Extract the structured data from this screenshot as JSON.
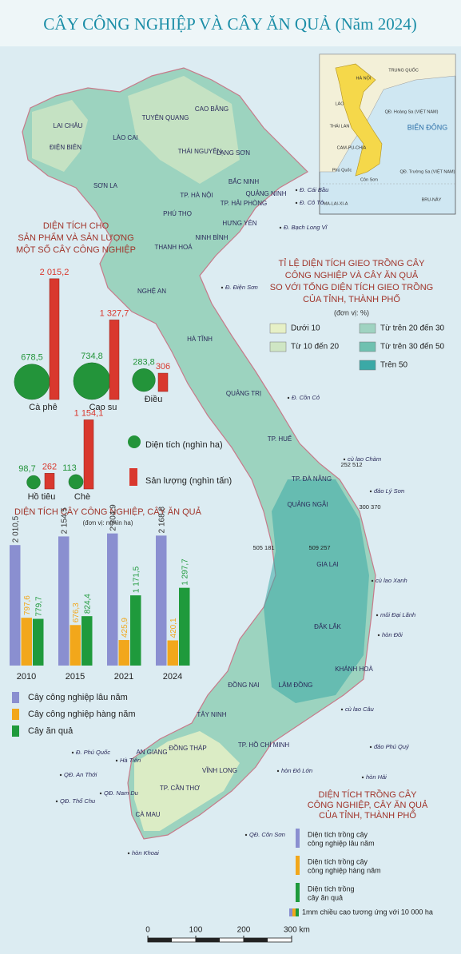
{
  "title": "CÂY CÔNG NGHIỆP VÀ CÂY ĂN QUẢ (Năm 2024)",
  "map": {
    "provinces": [
      "LAI CHÂU",
      "ĐIỆN BIÊN",
      "LÀO CAI",
      "TUYÊN QUANG",
      "CAO BẰNG",
      "THÁI NGUYÊN",
      "LẠNG SƠN",
      "SƠN LA",
      "BẮC NINH",
      "QUẢNG NINH",
      "TP. HÀ NỘI",
      "TP. HẢI PHÒNG",
      "PHÚ THỌ",
      "HƯNG YÊN",
      "NINH BÌNH",
      "THANH HOÁ",
      "NGHỆ AN",
      "HÀ TĨNH",
      "QUẢNG TRỊ",
      "TP. HUẾ",
      "TP. ĐÀ NẴNG",
      "QUẢNG NGÃI",
      "GIA LAI",
      "ĐẮK LẮK",
      "KHÁNH HOÀ",
      "LÂM ĐỒNG",
      "ĐỒNG NAI",
      "TÂY NINH",
      "TP. HỒ CHÍ MINH",
      "AN GIANG",
      "ĐỒNG THÁP",
      "VĨNH LONG",
      "TP. CẦN THƠ",
      "CÀ MAU"
    ],
    "places": [
      "Đ. Cái Bầu",
      "Đ. Cô Tô",
      "Đ. Bạch Long Vĩ",
      "Đ. Điện Sơn",
      "Đ. Cồn Cỏ",
      "cù lao Chàm",
      "đảo Lý Sơn",
      "cù lao Xanh",
      "mũi Đại Lãnh",
      "hòn Đôi",
      "cù lao Câu",
      "đảo Phú Quý",
      "hòn Đỏ Lớn",
      "hòn Hải",
      "Đ. Phú Quốc",
      "QĐ. An Thới",
      "QĐ. Nam Du",
      "QĐ. Thổ Chu",
      "QĐ. Côn Sơn",
      "hòn Khoai",
      "Hà Tiên"
    ],
    "cut_labels": [
      "505 181",
      "509 257",
      "252 512",
      "300 370"
    ],
    "ratio_legend": {
      "title_lines": [
        "TỈ LỆ DIỆN TÍCH GIEO TRỒNG CÂY",
        "CÔNG NGHIỆP VÀ CÂY ĂN QUẢ",
        "SO VỚI TỔNG DIỆN TÍCH GIEO TRỒNG",
        "CỦA TỈNH, THÀNH PHỐ"
      ],
      "unit": "(đơn vị: %)",
      "classes": [
        {
          "label": "Dưới 10",
          "color": "#e6f0c6"
        },
        {
          "label": "Từ 10 đến 20",
          "color": "#cfe6c4"
        },
        {
          "label": "Từ trên 20 đến 30",
          "color": "#9fd3c1"
        },
        {
          "label": "Từ trên 30 đến 50",
          "color": "#6fc1b0"
        },
        {
          "label": "Trên 50",
          "color": "#3ba9a6"
        }
      ]
    },
    "bar_legend": {
      "title_lines": [
        "DIỆN TÍCH TRỒNG CÂY",
        "CÔNG NGHIỆP, CÂY ĂN QUẢ",
        "CỦA TỈNH, THÀNH PHỐ"
      ],
      "items": [
        {
          "lines": [
            "Diện tích trồng cây",
            "công nghiệp lâu năm"
          ],
          "color": "#8a8fd0"
        },
        {
          "lines": [
            "Diện tích trồng cây",
            "công nghiệp hàng năm"
          ],
          "color": "#f2a71b"
        },
        {
          "lines": [
            "Diện tích trồng",
            "cây ăn quả"
          ],
          "color": "#1f9a3c"
        }
      ],
      "scale_note": "1mm chiều cao tương ứng với 10 000 ha"
    },
    "scale_bar": {
      "ticks": [
        0,
        100,
        200,
        {
          "value": 300,
          "label": "300 km"
        }
      ]
    },
    "inset": {
      "labels": [
        "TRUNG QUỐC",
        "HÀ NỘI",
        "LÀO",
        "THÁI LAN",
        "CAM-PU-CHIA",
        "BIỂN ĐÔNG",
        "QĐ. Hoàng Sa (VIỆT NAM)",
        "QĐ. Trường Sa (VIỆT NAM)",
        "Phú Quốc",
        "Côn Sơn",
        "MA-LAI-XI-A",
        "BRU-NÂY"
      ]
    }
  },
  "chart_data": [
    {
      "type": "bubble_bar",
      "title_lines": [
        "DIỆN TÍCH CHO",
        "SẢN PHẨM VÀ SẢN LƯỢNG",
        "MỘT SỐ CÂY CÔNG NGHIỆP"
      ],
      "categories": [
        "Cà phê",
        "Cao su",
        "Điều",
        "Hồ tiêu",
        "Chè"
      ],
      "series": [
        {
          "name": "Diện tích (nghìn ha)",
          "color": "#23943a",
          "values": [
            678.5,
            734.8,
            283.8,
            98.7,
            113
          ],
          "value_labels": [
            "678,5",
            "734,8",
            "283,8",
            "98,7",
            "113"
          ]
        },
        {
          "name": "Sản lượng (nghìn tấn)",
          "color": "#d9382e",
          "values": [
            2015.2,
            1327.7,
            306,
            262,
            1154.1
          ],
          "value_labels": [
            "2 015,2",
            "1 327,7",
            "306",
            "262",
            "1 154,1"
          ]
        }
      ]
    },
    {
      "type": "bar",
      "title": "DIỆN TÍCH CÂY CÔNG NGHIỆP, CÂY ĂN QUẢ",
      "unit": "(đơn vị: nghìn ha)",
      "categories": [
        "2010",
        "2015",
        "2021",
        "2024"
      ],
      "series": [
        {
          "name": "Cây công nghiệp lâu năm",
          "color": "#8a8fd0",
          "values": [
            2010.5,
            2154.5,
            2204.9,
            2168.8
          ],
          "value_labels": [
            "2 010,5",
            "2 154,5",
            "2 204,9",
            "2 168,8"
          ]
        },
        {
          "name": "Cây công nghiệp hàng năm",
          "color": "#f2a71b",
          "values": [
            797.6,
            676.3,
            425.9,
            420.1
          ],
          "value_labels": [
            "797,6",
            "676,3",
            "425,9",
            "420,1"
          ]
        },
        {
          "name": "Cây ăn quả",
          "color": "#1f9a3c",
          "values": [
            779.7,
            824.4,
            1171.5,
            1297.7
          ],
          "value_labels": [
            "779,7",
            "824,4",
            "1 171,5",
            "1 297,7"
          ]
        }
      ]
    }
  ]
}
